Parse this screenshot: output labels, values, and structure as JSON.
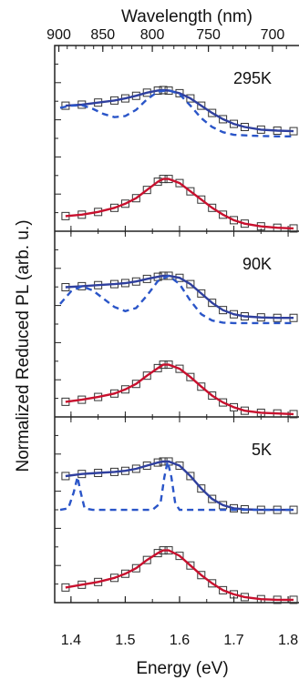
{
  "figure": {
    "top_axis_label": "Wavelength (nm)",
    "bottom_axis_label": "Energy (eV)",
    "y_axis_label": "Normalized Reduced PL (arb. u.)"
  },
  "chart_data": {
    "type": "line",
    "x_label": "Energy (eV)",
    "x_range": [
      1.37,
      1.82
    ],
    "x_ticks": [
      "1.4",
      "1.5",
      "1.6",
      "1.7",
      "1.8"
    ],
    "x_tick_values": [
      1.4,
      1.5,
      1.6,
      1.7,
      1.8
    ],
    "secondary_x_label": "Wavelength (nm)",
    "secondary_x_ticks": [
      "900",
      "850",
      "800",
      "750",
      "700"
    ],
    "secondary_x_tick_values_nm": [
      900,
      850,
      800,
      750,
      700
    ],
    "y_label": "Normalized Reduced PL (arb. u.)",
    "colors": {
      "upper_fit": "#2f3f9e",
      "lower_fit": "#c8102e",
      "components": "#2a55c8",
      "markers": "#333333"
    },
    "panels": [
      {
        "temperature": "295K",
        "upper_trace": {
          "x": [
            1.39,
            1.42,
            1.45,
            1.48,
            1.5,
            1.52,
            1.54,
            1.56,
            1.57,
            1.58,
            1.6,
            1.62,
            1.64,
            1.66,
            1.68,
            1.7,
            1.72,
            1.75,
            1.78,
            1.81
          ],
          "y": [
            0.7,
            0.72,
            0.76,
            0.8,
            0.84,
            0.89,
            0.95,
            0.99,
            1.0,
            0.99,
            0.94,
            0.84,
            0.7,
            0.56,
            0.44,
            0.35,
            0.29,
            0.24,
            0.22,
            0.21
          ]
        },
        "component": {
          "x": [
            1.38,
            1.4,
            1.42,
            1.44,
            1.46,
            1.48,
            1.5,
            1.52,
            1.54,
            1.56,
            1.58,
            1.6,
            1.62,
            1.64,
            1.66,
            1.68,
            1.7,
            1.74,
            1.78,
            1.81
          ],
          "y": [
            0.66,
            0.7,
            0.71,
            0.64,
            0.54,
            0.48,
            0.5,
            0.62,
            0.82,
            0.97,
            1.0,
            0.92,
            0.7,
            0.46,
            0.29,
            0.19,
            0.14,
            0.12,
            0.11,
            0.11
          ]
        },
        "lower_trace": {
          "x": [
            1.39,
            1.42,
            1.45,
            1.48,
            1.5,
            1.52,
            1.54,
            1.56,
            1.57,
            1.58,
            1.6,
            1.62,
            1.64,
            1.66,
            1.68,
            1.7,
            1.72,
            1.75,
            1.78,
            1.81
          ],
          "y": [
            0.18,
            0.2,
            0.24,
            0.3,
            0.36,
            0.44,
            0.56,
            0.68,
            0.72,
            0.72,
            0.66,
            0.54,
            0.42,
            0.3,
            0.2,
            0.12,
            0.07,
            0.03,
            0.01,
            0.0
          ]
        }
      },
      {
        "temperature": "90K",
        "upper_trace": {
          "x": [
            1.39,
            1.42,
            1.45,
            1.48,
            1.5,
            1.52,
            1.54,
            1.56,
            1.57,
            1.58,
            1.6,
            1.62,
            1.64,
            1.66,
            1.68,
            1.7,
            1.72,
            1.75,
            1.78,
            1.81
          ],
          "y": [
            0.78,
            0.8,
            0.82,
            0.84,
            0.86,
            0.89,
            0.94,
            0.98,
            1.0,
            1.0,
            0.96,
            0.84,
            0.66,
            0.48,
            0.34,
            0.26,
            0.22,
            0.2,
            0.19,
            0.19
          ]
        },
        "component": {
          "x": [
            1.38,
            1.4,
            1.42,
            1.44,
            1.46,
            1.48,
            1.5,
            1.52,
            1.54,
            1.56,
            1.58,
            1.6,
            1.62,
            1.64,
            1.66,
            1.68,
            1.7,
            1.74,
            1.78,
            1.81
          ],
          "y": [
            0.46,
            0.7,
            0.8,
            0.72,
            0.56,
            0.4,
            0.32,
            0.38,
            0.62,
            0.9,
            1.0,
            0.84,
            0.52,
            0.26,
            0.14,
            0.1,
            0.09,
            0.09,
            0.09,
            0.09
          ]
        },
        "lower_trace": {
          "x": [
            1.39,
            1.42,
            1.45,
            1.48,
            1.5,
            1.52,
            1.54,
            1.56,
            1.57,
            1.58,
            1.6,
            1.62,
            1.64,
            1.66,
            1.68,
            1.7,
            1.72,
            1.75,
            1.78,
            1.81
          ],
          "y": [
            0.18,
            0.21,
            0.25,
            0.3,
            0.36,
            0.44,
            0.56,
            0.67,
            0.72,
            0.72,
            0.66,
            0.54,
            0.4,
            0.27,
            0.17,
            0.1,
            0.05,
            0.02,
            0.01,
            0.0
          ]
        }
      },
      {
        "temperature": "5K",
        "upper_trace": {
          "x": [
            1.39,
            1.42,
            1.45,
            1.48,
            1.5,
            1.52,
            1.54,
            1.56,
            1.57,
            1.58,
            1.6,
            1.62,
            1.64,
            1.66,
            1.68,
            1.7,
            1.72,
            1.75,
            1.78,
            1.81
          ],
          "y": [
            0.72,
            0.76,
            0.78,
            0.8,
            0.82,
            0.86,
            0.92,
            0.98,
            1.0,
            1.0,
            0.92,
            0.72,
            0.48,
            0.28,
            0.16,
            0.1,
            0.08,
            0.07,
            0.07,
            0.07
          ]
        },
        "component": {
          "x": [
            1.38,
            1.395,
            1.405,
            1.412,
            1.418,
            1.425,
            1.44,
            1.5,
            1.55,
            1.565,
            1.572,
            1.578,
            1.585,
            1.592,
            1.6,
            1.65,
            1.7,
            1.75,
            1.81
          ],
          "y": [
            0.07,
            0.1,
            0.4,
            0.7,
            0.4,
            0.1,
            0.07,
            0.07,
            0.07,
            0.2,
            0.7,
            1.0,
            0.7,
            0.2,
            0.07,
            0.07,
            0.07,
            0.07,
            0.07
          ]
        },
        "lower_trace": {
          "x": [
            1.39,
            1.42,
            1.45,
            1.48,
            1.5,
            1.52,
            1.54,
            1.56,
            1.57,
            1.58,
            1.6,
            1.62,
            1.64,
            1.66,
            1.68,
            1.7,
            1.72,
            1.75,
            1.78,
            1.81
          ],
          "y": [
            0.18,
            0.22,
            0.26,
            0.32,
            0.38,
            0.46,
            0.58,
            0.68,
            0.72,
            0.72,
            0.64,
            0.5,
            0.36,
            0.24,
            0.14,
            0.08,
            0.04,
            0.01,
            0.0,
            0.0
          ]
        }
      }
    ]
  }
}
